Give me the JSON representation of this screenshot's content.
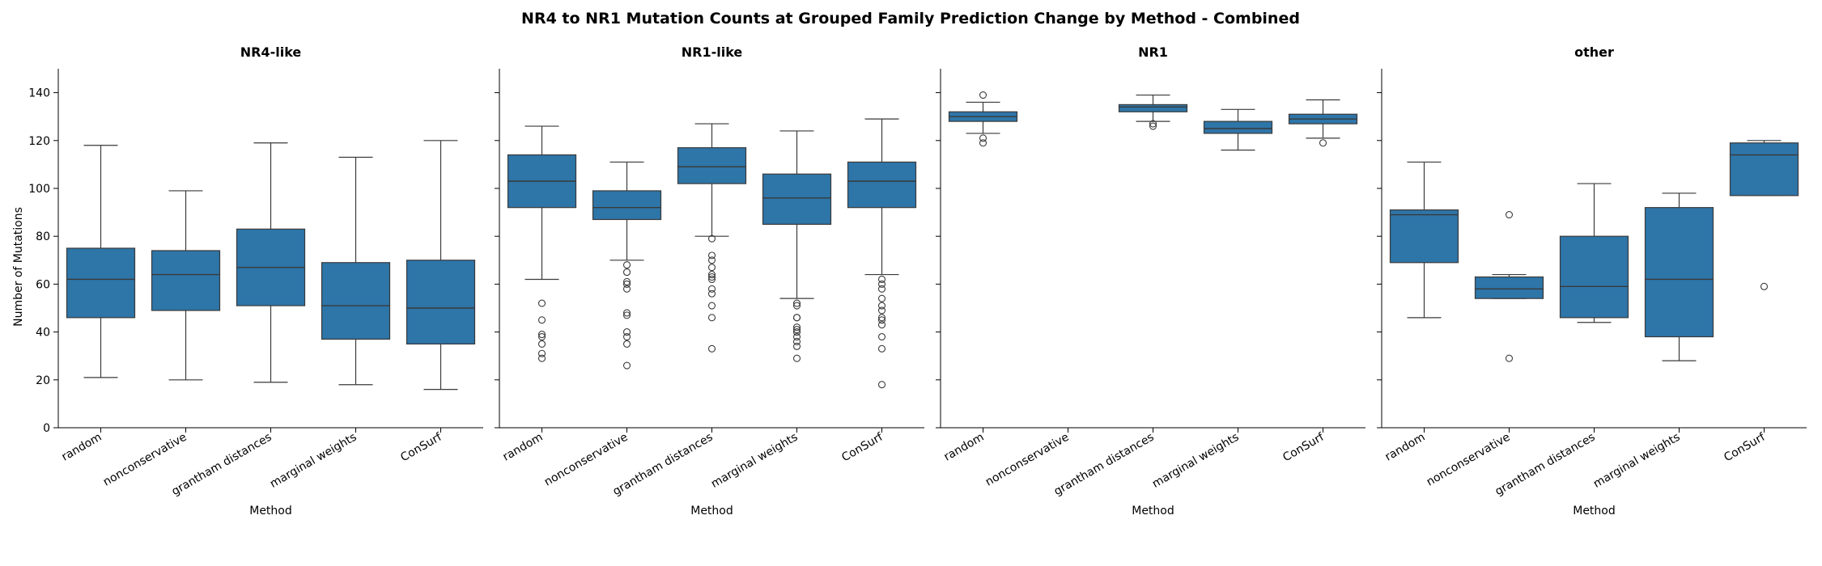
{
  "chart_data": {
    "type": "box",
    "title": "NR4 to NR1 Mutation Counts at Grouped Family Prediction Change by Method - Combined",
    "xlabel": "Method",
    "ylabel": "Number of Mutations",
    "ylim": [
      0,
      150
    ],
    "yticks": [
      0,
      20,
      40,
      60,
      80,
      100,
      120,
      140
    ],
    "categories": [
      "random",
      "nonconservative",
      "grantham distances",
      "marginal weights",
      "ConSurf"
    ],
    "box_color": "#2e75a8",
    "grid": false,
    "legend": "none",
    "panels": [
      {
        "title": "NR4-like",
        "boxes": [
          {
            "category": "random",
            "whislo": 21,
            "q1": 46,
            "med": 62,
            "q3": 75,
            "whishi": 118,
            "fliers": []
          },
          {
            "category": "nonconservative",
            "whislo": 20,
            "q1": 49,
            "med": 64,
            "q3": 74,
            "whishi": 99,
            "fliers": []
          },
          {
            "category": "grantham distances",
            "whislo": 19,
            "q1": 51,
            "med": 67,
            "q3": 83,
            "whishi": 119,
            "fliers": []
          },
          {
            "category": "marginal weights",
            "whislo": 18,
            "q1": 37,
            "med": 51,
            "q3": 69,
            "whishi": 113,
            "fliers": []
          },
          {
            "category": "ConSurf",
            "whislo": 16,
            "q1": 35,
            "med": 50,
            "q3": 70,
            "whishi": 120,
            "fliers": []
          }
        ]
      },
      {
        "title": "NR1-like",
        "boxes": [
          {
            "category": "random",
            "whislo": 62,
            "q1": 92,
            "med": 103,
            "q3": 114,
            "whishi": 126,
            "fliers": [
              52,
              45,
              39,
              38,
              35,
              31,
              29
            ]
          },
          {
            "category": "nonconservative",
            "whislo": 70,
            "q1": 87,
            "med": 92,
            "q3": 99,
            "whishi": 111,
            "fliers": [
              68,
              65,
              61,
              60,
              58,
              48,
              47,
              40,
              38,
              35,
              26
            ]
          },
          {
            "category": "grantham distances",
            "whislo": 80,
            "q1": 102,
            "med": 109,
            "q3": 117,
            "whishi": 127,
            "fliers": [
              79,
              72,
              70,
              67,
              64,
              63,
              62,
              58,
              56,
              51,
              46,
              33
            ]
          },
          {
            "category": "marginal weights",
            "whislo": 54,
            "q1": 85,
            "med": 96,
            "q3": 106,
            "whishi": 124,
            "fliers": [
              52,
              51,
              46,
              46,
              42,
              41,
              40,
              38,
              36,
              34,
              29
            ]
          },
          {
            "category": "ConSurf",
            "whislo": 64,
            "q1": 92,
            "med": 103,
            "q3": 111,
            "whishi": 129,
            "fliers": [
              62,
              60,
              58,
              54,
              51,
              49,
              46,
              45,
              43,
              38,
              33,
              18
            ]
          }
        ]
      },
      {
        "title": "NR1",
        "boxes": [
          {
            "category": "random",
            "whislo": 123,
            "q1": 128,
            "med": 130,
            "q3": 132,
            "whishi": 136,
            "fliers": [
              139,
              121,
              119
            ]
          },
          {
            "category": "nonconservative",
            "whislo": null,
            "q1": null,
            "med": null,
            "q3": null,
            "whishi": null,
            "fliers": []
          },
          {
            "category": "grantham distances",
            "whislo": 128,
            "q1": 132,
            "med": 134,
            "q3": 135,
            "whishi": 139,
            "fliers": [
              127,
              126
            ]
          },
          {
            "category": "marginal weights",
            "whislo": 116,
            "q1": 123,
            "med": 125,
            "q3": 128,
            "whishi": 133,
            "fliers": []
          },
          {
            "category": "ConSurf",
            "whislo": 121,
            "q1": 127,
            "med": 129,
            "q3": 131,
            "whishi": 137,
            "fliers": [
              119
            ]
          }
        ]
      },
      {
        "title": "other",
        "boxes": [
          {
            "category": "random",
            "whislo": 46,
            "q1": 69,
            "med": 89,
            "q3": 91,
            "whishi": 111,
            "fliers": []
          },
          {
            "category": "nonconservative",
            "whislo": 54,
            "q1": 54,
            "med": 58,
            "q3": 63,
            "whishi": 64,
            "fliers": [
              89,
              29
            ]
          },
          {
            "category": "grantham distances",
            "whislo": 44,
            "q1": 46,
            "med": 59,
            "q3": 80,
            "whishi": 102,
            "fliers": []
          },
          {
            "category": "marginal weights",
            "whislo": 28,
            "q1": 38,
            "med": 62,
            "q3": 92,
            "whishi": 98,
            "fliers": []
          },
          {
            "category": "ConSurf",
            "whislo": 97,
            "q1": 97,
            "med": 114,
            "q3": 119,
            "whishi": 120,
            "fliers": [
              59
            ]
          }
        ]
      }
    ]
  }
}
